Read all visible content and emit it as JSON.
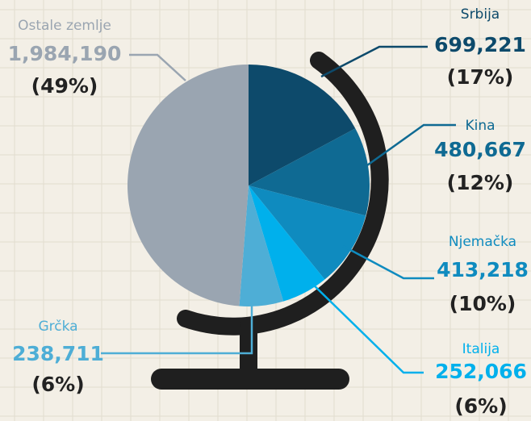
{
  "chart_data": {
    "type": "pie",
    "categories": [
      "Srbija",
      "Kina",
      "Njemačka",
      "Italija",
      "Grčka",
      "Ostale zemlje"
    ],
    "values": [
      699221,
      480667,
      413218,
      252066,
      238711,
      1984190
    ],
    "value_labels": [
      "699,221",
      "480,667",
      "413,218",
      "252,066",
      "238,711",
      "1,984,190"
    ],
    "percent_labels": [
      "(17%)",
      "(12%)",
      "(10%)",
      "(6%)",
      "(6%)",
      "(49%)"
    ],
    "colors": [
      "#0d4a6b",
      "#0f6a93",
      "#0f8bbf",
      "#00b0ec",
      "#4eaed6",
      "#9aa5b1"
    ]
  }
}
